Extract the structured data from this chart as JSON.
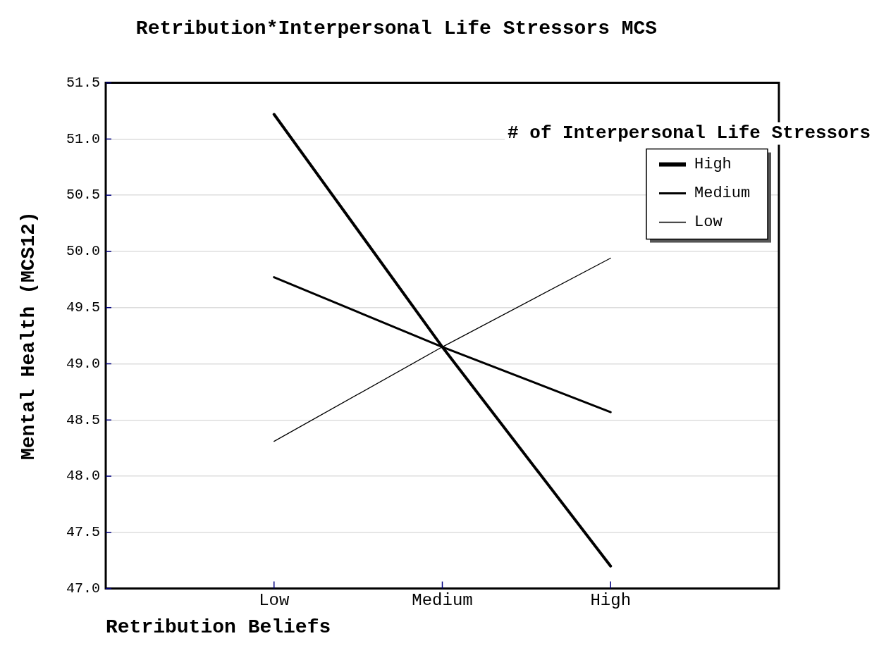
{
  "chart_data": {
    "type": "line",
    "title": "Retribution*Interpersonal Life Stressors MCS",
    "xlabel": "Retribution Beliefs",
    "ylabel": "Mental Health (MCS12)",
    "legend_title": "# of Interpersonal Life Stressors",
    "categories": [
      "Low",
      "Medium",
      "High"
    ],
    "series": [
      {
        "name": "High",
        "color": "#000000",
        "values": [
          51.22,
          49.15,
          47.2
        ]
      },
      {
        "name": "Medium",
        "color": "#000000",
        "values": [
          49.77,
          49.15,
          48.57
        ]
      },
      {
        "name": "Low",
        "color": "#000000",
        "values": [
          48.31,
          49.15,
          49.94
        ]
      }
    ],
    "ylim": [
      47.0,
      51.5
    ],
    "yticks": [
      {
        "value": 47,
        "label": "47.0"
      },
      {
        "value": 47.5,
        "label": "47.5"
      },
      {
        "value": 48,
        "label": "48.0"
      },
      {
        "value": 48.5,
        "label": "48.5"
      },
      {
        "value": 49,
        "label": "49.0"
      },
      {
        "value": 49.5,
        "label": "49.5"
      },
      {
        "value": 50,
        "label": "50.0"
      },
      {
        "value": 50.5,
        "label": "50.5"
      },
      {
        "value": 51,
        "label": "51.0"
      },
      {
        "value": 51.5,
        "label": "51.5"
      }
    ],
    "grid": "y",
    "legend": "top right",
    "marker": "none",
    "line_style": "solid"
  }
}
